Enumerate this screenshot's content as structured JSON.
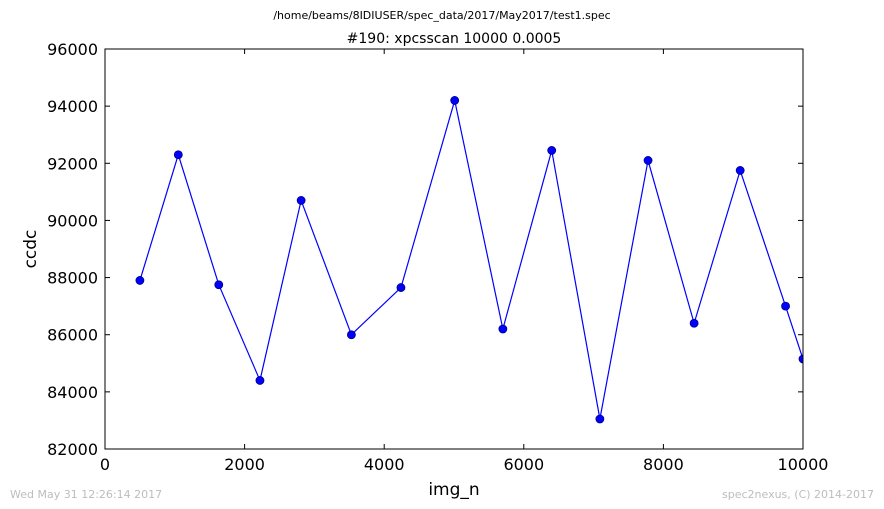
{
  "header": {
    "suptitle": "/home/beams/8IDIUSER/spec_data/2017/May2017/test1.spec"
  },
  "footer": {
    "timestamp": "Wed May 31 12:26:14 2017",
    "credit": "spec2nexus, (C) 2014-2017"
  },
  "colors": {
    "line": "#0000ff",
    "marker_edge": "#000080",
    "footer_text": "#bdbdbd"
  },
  "chart_data": {
    "type": "line",
    "title": "#190: xpcsscan 10000 0.0005",
    "xlabel": "img_n",
    "ylabel": "ccdc",
    "xlim": [
      0,
      10000
    ],
    "ylim": [
      82000,
      96000
    ],
    "xticks": [
      "0",
      "2000",
      "4000",
      "6000",
      "8000",
      "10000"
    ],
    "yticks": [
      "82000",
      "84000",
      "86000",
      "88000",
      "90000",
      "92000",
      "94000",
      "96000"
    ],
    "grid": false,
    "series": [
      {
        "x": [
          500,
          1050,
          1630,
          2220,
          2810,
          3530,
          4240,
          5010,
          5700,
          6400,
          7090,
          7780,
          8440,
          9100,
          9750,
          10000
        ],
        "values": [
          87900,
          92300,
          87750,
          84400,
          90700,
          86000,
          87650,
          94200,
          86200,
          92450,
          83050,
          92100,
          86400,
          91750,
          87000,
          85150
        ]
      }
    ]
  }
}
